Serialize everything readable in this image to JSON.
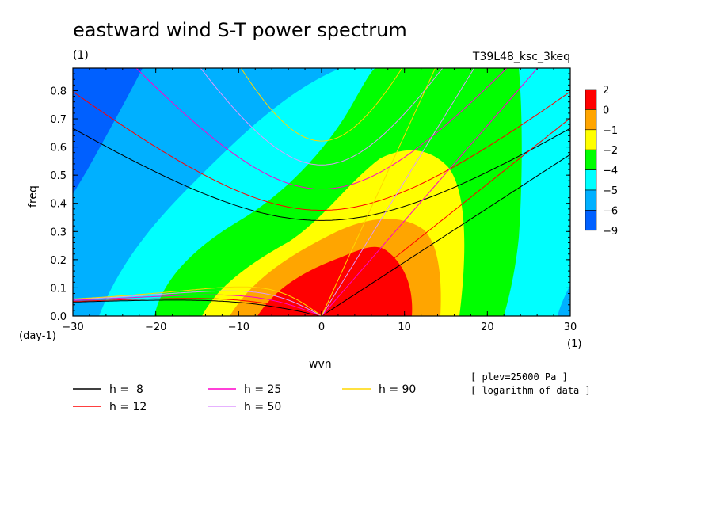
{
  "chart_data": {
    "type": "heatmap",
    "title": "eastward wind S-T power spectrum",
    "units_label": "(1)",
    "run_name": "T39L48_ksc_3keq",
    "xlabel": "wvn",
    "ylabel": "freq",
    "xunit": "(1)",
    "yunit": "(day-1)",
    "xlim": [
      -30,
      30
    ],
    "ylim": [
      0,
      0.88
    ],
    "xticks": [
      -30,
      -20,
      -10,
      0,
      10,
      20,
      30
    ],
    "yticks": [
      0.0,
      0.1,
      0.2,
      0.3,
      0.4,
      0.5,
      0.6,
      0.7,
      0.8
    ],
    "ytick_labels": [
      "0.0",
      "0.1",
      "0.2",
      "0.3",
      "0.4",
      "0.5",
      "0.6",
      "0.7",
      "0.8"
    ],
    "colorbar": {
      "labels": [
        "2",
        "0",
        "−1",
        "−2",
        "−4",
        "−5",
        "−6",
        "−9"
      ],
      "colors": [
        "#ff0000",
        "#ffa500",
        "#ffff00",
        "#00ff00",
        "#00ffff",
        "#00b0ff",
        "#0060ff"
      ]
    },
    "contour_fill": {
      "description_levels": [
        -9,
        -6,
        -5,
        -4,
        -2,
        -1,
        0,
        2
      ],
      "peak_at": {
        "wvn": 3,
        "freq": 0.05
      }
    },
    "dispersion_curves": {
      "series": [
        {
          "name": "h =  8",
          "h": 8,
          "color": "#000000"
        },
        {
          "name": "h = 12",
          "h": 12,
          "color": "#ff0000"
        },
        {
          "name": "h = 25",
          "h": 25,
          "color": "#ff00cc"
        },
        {
          "name": "h = 50",
          "h": 50,
          "color": "#dd99ff"
        },
        {
          "name": "h = 90",
          "h": 90,
          "color": "#ffd700"
        }
      ]
    },
    "notes": [
      "[ plev=25000 Pa ]",
      "[ logarithm of data ]"
    ]
  }
}
